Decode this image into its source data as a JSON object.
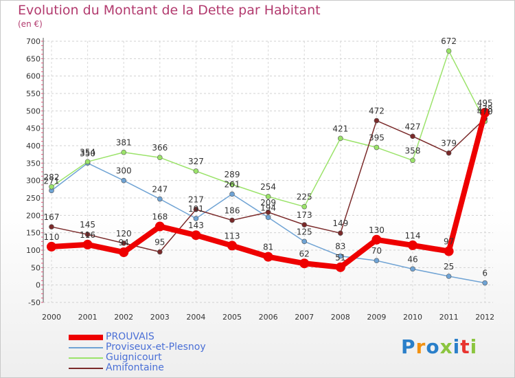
{
  "title": "Evolution du Montant de la Dette par Habitant",
  "subtitle": "(en €)",
  "logo": {
    "text": "Proxiti",
    "colors": [
      "#2a7fc9",
      "#f29111",
      "#2a7fc9",
      "#8bc53f",
      "#2a7fc9",
      "#e8342f",
      "#8bc53f"
    ]
  },
  "chart_data": {
    "type": "line",
    "x": [
      "2000",
      "2001",
      "2002",
      "2003",
      "2004",
      "2005",
      "2006",
      "2007",
      "2008",
      "2009",
      "2010",
      "2011",
      "2012"
    ],
    "ylim": [
      -50,
      700
    ],
    "yticks": [
      -50,
      0,
      50,
      100,
      150,
      200,
      250,
      300,
      350,
      400,
      450,
      500,
      550,
      600,
      650,
      700
    ],
    "grid": true,
    "legend_position": "bottom-left",
    "series": [
      {
        "name": "PROUVAIS",
        "color": "#ee0000",
        "width": 8,
        "values": [
          110,
          116,
          94,
          168,
          143,
          113,
          81,
          62,
          51,
          130,
          114,
          97,
          495
        ]
      },
      {
        "name": "Proviseux-et-Plesnoy",
        "color": "#6fa3d4",
        "width": 1.5,
        "values": [
          271,
          350,
          300,
          247,
          191,
          261,
          194,
          125,
          83,
          70,
          46,
          25,
          6
        ]
      },
      {
        "name": "Guignicourt",
        "color": "#9be36a",
        "width": 1.5,
        "values": [
          282,
          354,
          381,
          366,
          327,
          289,
          254,
          225,
          421,
          395,
          358,
          672,
          470
        ]
      },
      {
        "name": "Amifontaine",
        "color": "#7a2a2a",
        "width": 1.5,
        "values": [
          167,
          145,
          120,
          95,
          217,
          186,
          209,
          173,
          149,
          472,
          427,
          379,
          478
        ]
      }
    ]
  }
}
